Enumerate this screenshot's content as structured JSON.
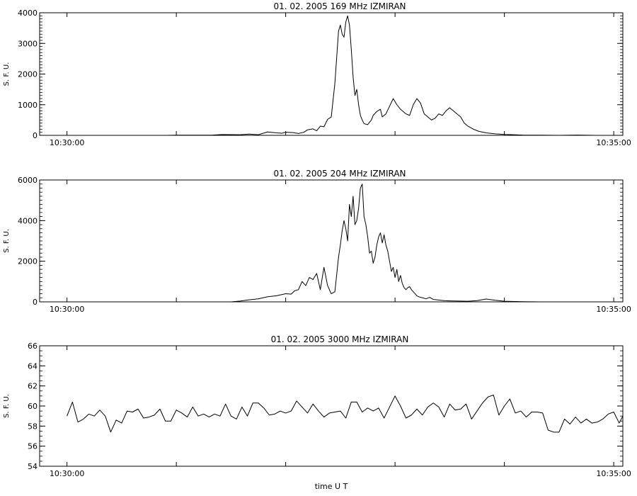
{
  "figure": {
    "xlabel": "time  U T"
  },
  "chart_data": [
    {
      "type": "line",
      "title": "01.  02.  2005    169  MHz    IZMIRAN",
      "ylabel": "S. F. U.",
      "xlim": [
        "10:29:45",
        "10:35:00"
      ],
      "ylim": [
        0,
        4000
      ],
      "yticks": [
        0,
        1000,
        2000,
        3000,
        4000
      ],
      "xticks": [
        "10:30:00",
        "10:35:00"
      ],
      "series": [
        {
          "x_seconds_from_1030": [
            0,
            55,
            60,
            80,
            85,
            95,
            100,
            105,
            110,
            115,
            118,
            120,
            124,
            127,
            130,
            132,
            135,
            137,
            139,
            141,
            143,
            145,
            147,
            149,
            150,
            151,
            152,
            153,
            154,
            155,
            156,
            157,
            158,
            159,
            160,
            161,
            162,
            163,
            165,
            167,
            168,
            170,
            172,
            173,
            175,
            177,
            179,
            181,
            183,
            184,
            186,
            188,
            190,
            192,
            194,
            196,
            198,
            200,
            202,
            204,
            206,
            208,
            210,
            212,
            214,
            216,
            218,
            220,
            223,
            226,
            230,
            235,
            240,
            245,
            250,
            260,
            270,
            280,
            290,
            300,
            305
          ],
          "values": [
            0,
            0,
            5,
            10,
            25,
            20,
            40,
            20,
            110,
            80,
            70,
            100,
            90,
            60,
            100,
            180,
            210,
            150,
            300,
            280,
            520,
            600,
            1700,
            3400,
            3600,
            3300,
            3200,
            3700,
            3900,
            3600,
            2800,
            1900,
            1300,
            1500,
            1000,
            650,
            500,
            380,
            350,
            500,
            650,
            780,
            850,
            600,
            700,
            950,
            1200,
            1000,
            850,
            800,
            700,
            650,
            1000,
            1200,
            1050,
            700,
            600,
            500,
            560,
            700,
            650,
            800,
            900,
            800,
            700,
            600,
            400,
            300,
            200,
            130,
            80,
            50,
            30,
            20,
            10,
            5,
            0,
            10,
            0,
            0,
            0
          ]
        }
      ]
    },
    {
      "type": "line",
      "title": "01.  02.  2005    204  MHz    IZMIRAN",
      "ylabel": "S. F. U.",
      "xlim": [
        "10:29:45",
        "10:35:00"
      ],
      "ylim": [
        0,
        6000
      ],
      "yticks": [
        0,
        2000,
        4000,
        6000
      ],
      "xticks": [
        "10:30:00",
        "10:35:00"
      ],
      "series": [
        {
          "x_seconds_from_1030": [
            0,
            90,
            95,
            100,
            105,
            110,
            115,
            120,
            123,
            125,
            127,
            129,
            131,
            133,
            135,
            137,
            139,
            141,
            143,
            145,
            147,
            149,
            150,
            151,
            152,
            153,
            154,
            155,
            156,
            157,
            158,
            159,
            160,
            161,
            162,
            163,
            164,
            165,
            166,
            167,
            168,
            169,
            170,
            171,
            172,
            173,
            174,
            175,
            176,
            177,
            178,
            179,
            180,
            181,
            182,
            183,
            184,
            185,
            186,
            187,
            188,
            189,
            190,
            191,
            192,
            193,
            195,
            197,
            199,
            201,
            203,
            205,
            207,
            210,
            215,
            220,
            225,
            230,
            235,
            240,
            250,
            260,
            305
          ],
          "values": [
            0,
            0,
            40,
            100,
            150,
            250,
            300,
            400,
            380,
            550,
            600,
            1000,
            800,
            1200,
            1100,
            1400,
            600,
            1700,
            800,
            400,
            500,
            2200,
            2800,
            3500,
            4000,
            3600,
            3000,
            4800,
            4200,
            5200,
            3800,
            4000,
            4600,
            5600,
            5800,
            4200,
            3800,
            3200,
            2400,
            2500,
            1900,
            2200,
            2800,
            3200,
            3400,
            2900,
            3300,
            2800,
            2500,
            2000,
            1500,
            1700,
            1200,
            1600,
            1000,
            1300,
            900,
            700,
            600,
            700,
            750,
            600,
            500,
            400,
            300,
            250,
            200,
            150,
            220,
            120,
            100,
            80,
            60,
            50,
            40,
            30,
            60,
            140,
            80,
            30,
            10,
            0,
            0
          ]
        }
      ]
    },
    {
      "type": "line",
      "title": "01.  02.  2005    3000  MHz    IZMIRAN",
      "ylabel": "S. F. U.",
      "xlim": [
        "10:29:45",
        "10:35:00"
      ],
      "ylim": [
        54,
        66
      ],
      "yticks": [
        54,
        56,
        58,
        60,
        62,
        64,
        66
      ],
      "xticks": [
        "10:30:00",
        "10:35:00"
      ],
      "series": [
        {
          "x_seconds_from_1030": [
            0,
            3,
            6,
            9,
            12,
            15,
            18,
            21,
            24,
            27,
            30,
            33,
            36,
            39,
            42,
            45,
            48,
            51,
            54,
            57,
            60,
            63,
            66,
            69,
            72,
            75,
            78,
            81,
            84,
            87,
            90,
            93,
            96,
            99,
            102,
            105,
            108,
            111,
            114,
            117,
            120,
            123,
            126,
            129,
            132,
            135,
            138,
            141,
            144,
            147,
            150,
            153,
            156,
            159,
            162,
            165,
            168,
            171,
            174,
            177,
            180,
            183,
            186,
            189,
            192,
            195,
            198,
            201,
            204,
            207,
            210,
            213,
            216,
            219,
            222,
            225,
            228,
            231,
            234,
            237,
            240,
            243,
            246,
            249,
            252,
            255,
            258,
            261,
            264,
            267,
            270,
            273,
            276,
            279,
            282,
            285,
            288,
            291,
            294,
            297,
            300,
            303,
            305
          ],
          "values": [
            59.0,
            60.4,
            58.4,
            58.7,
            59.2,
            59.0,
            59.6,
            59.0,
            57.4,
            58.6,
            58.3,
            59.5,
            59.4,
            59.7,
            58.8,
            58.9,
            59.1,
            59.7,
            58.5,
            58.5,
            59.6,
            59.3,
            58.9,
            59.9,
            59.0,
            59.2,
            58.9,
            59.2,
            59.0,
            60.2,
            59.0,
            58.7,
            59.9,
            59.0,
            60.3,
            60.3,
            59.8,
            59.1,
            59.2,
            59.5,
            59.3,
            59.5,
            60.5,
            59.9,
            59.3,
            60.2,
            59.5,
            58.9,
            59.3,
            59.4,
            59.5,
            58.8,
            60.4,
            60.4,
            59.4,
            59.8,
            59.5,
            59.8,
            58.8,
            59.9,
            61.0,
            60.0,
            58.8,
            59.1,
            59.7,
            59.1,
            59.9,
            60.3,
            59.9,
            58.9,
            60.2,
            59.6,
            59.7,
            60.2,
            58.7,
            59.5,
            60.3,
            60.9,
            61.1,
            59.1,
            60.0,
            60.7,
            59.3,
            59.5,
            58.9,
            59.4,
            59.4,
            59.3,
            57.6,
            57.4,
            57.4,
            58.7,
            58.2,
            58.9,
            58.3,
            58.7,
            58.3,
            58.4,
            58.7,
            59.2,
            59.4,
            58.3,
            59.0
          ]
        }
      ]
    }
  ]
}
